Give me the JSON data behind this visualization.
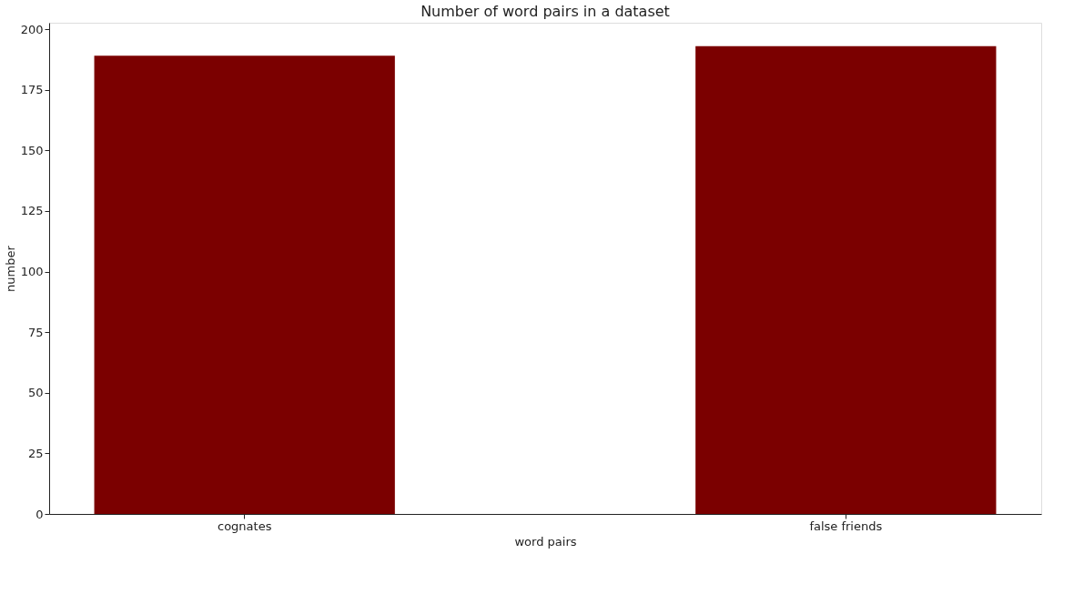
{
  "chart_data": {
    "type": "bar",
    "title": "Number of word pairs in a dataset",
    "xlabel": "word pairs",
    "ylabel": "number",
    "categories": [
      "cognates",
      "false friends"
    ],
    "values": [
      189,
      193
    ],
    "color": "#7b0000",
    "ylim": [
      0,
      202.65
    ],
    "yticks": [
      0,
      25,
      50,
      75,
      100,
      125,
      150,
      175,
      200
    ],
    "grid": false
  }
}
